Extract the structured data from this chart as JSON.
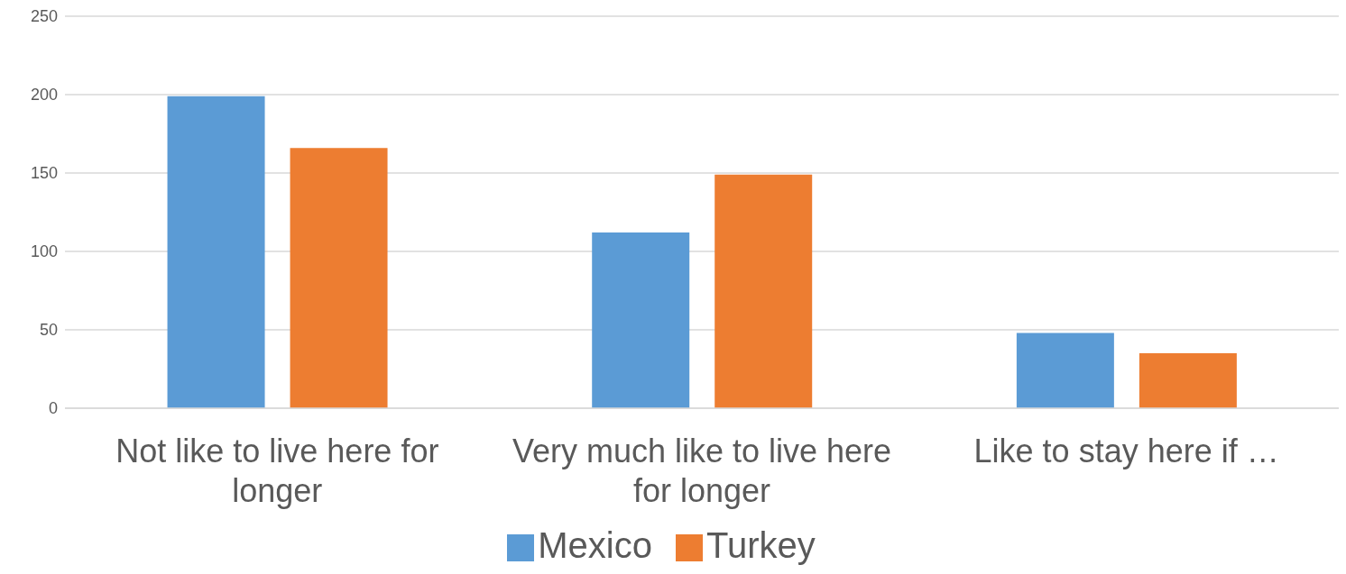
{
  "chart_data": {
    "type": "bar",
    "categories": [
      "Not like to live here for longer",
      "Very much like to live here for longer",
      "Like to stay here if …"
    ],
    "series": [
      {
        "name": "Mexico",
        "color": "#5b9bd5",
        "values": [
          199,
          112,
          48
        ]
      },
      {
        "name": "Turkey",
        "color": "#ed7d31",
        "values": [
          166,
          149,
          35
        ]
      }
    ],
    "ylim": [
      0,
      250
    ],
    "yticks": [
      0,
      50,
      100,
      150,
      200,
      250
    ],
    "grid": "y",
    "legend": "bottom"
  }
}
